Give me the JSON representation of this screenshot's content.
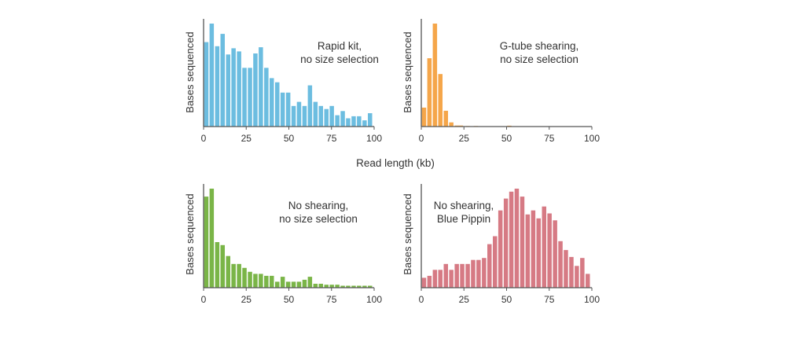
{
  "shared_xlabel": "Read length (kb)",
  "chart_data": [
    {
      "type": "bar",
      "color": "#6cbde0",
      "annotation": [
        "Rapid kit,",
        "no size selection"
      ],
      "ylabel": "Bases sequenced",
      "xlabel": "",
      "xlim": [
        0,
        100
      ],
      "xticks": [
        0,
        25,
        50,
        75,
        100
      ],
      "bin_width": 3.2,
      "x": [
        1.6,
        4.8,
        8.0,
        11.2,
        14.4,
        17.6,
        20.8,
        24.0,
        27.2,
        30.4,
        33.6,
        36.8,
        40.0,
        43.2,
        46.4,
        49.6,
        52.8,
        56.0,
        59.2,
        62.4,
        65.6,
        68.8,
        72.0,
        75.2,
        78.4,
        81.6,
        84.8,
        88.0,
        91.2,
        94.4,
        97.6
      ],
      "values": [
        82,
        100,
        78,
        90,
        70,
        76,
        73,
        57,
        57,
        71,
        77,
        57,
        47,
        43,
        33,
        33,
        20,
        24,
        20,
        40,
        24,
        20,
        17,
        20,
        11,
        15,
        8,
        10,
        10,
        6,
        13
      ]
    },
    {
      "type": "bar",
      "color": "#f5a64a",
      "annotation": [
        "G-tube shearing,",
        "no size selection"
      ],
      "ylabel": "Bases sequenced",
      "xlabel": "",
      "xlim": [
        0,
        100
      ],
      "xticks": [
        0,
        25,
        50,
        75,
        100
      ],
      "bin_width": 3.2,
      "x": [
        1.6,
        4.8,
        8.0,
        11.2,
        14.4,
        17.6,
        20.8,
        23.2,
        27.2,
        32.0,
        51.6
      ],
      "values": [
        18,
        65,
        98,
        50,
        15,
        4,
        1,
        1,
        0.5,
        0.5,
        0.8
      ]
    },
    {
      "type": "bar",
      "color": "#7ab547",
      "annotation": [
        "No shearing,",
        "no size selection"
      ],
      "ylabel": "Bases sequenced",
      "xlabel": "",
      "xlim": [
        0,
        100
      ],
      "xticks": [
        0,
        25,
        50,
        75,
        100
      ],
      "bin_width": 3.2,
      "x": [
        1.6,
        4.8,
        8.0,
        11.2,
        14.4,
        17.6,
        20.8,
        24.0,
        27.2,
        30.4,
        33.6,
        36.8,
        40.0,
        43.2,
        46.4,
        49.6,
        52.8,
        56.0,
        59.2,
        62.4,
        65.6,
        68.8,
        72.0,
        75.2,
        78.4,
        81.6,
        84.8,
        88.0,
        91.2,
        94.4,
        97.6
      ],
      "values": [
        92,
        100,
        46,
        43,
        32,
        24,
        24,
        20,
        16,
        14,
        14,
        12,
        12,
        6,
        11,
        6,
        6,
        6,
        8,
        11,
        4,
        4,
        3,
        3,
        3,
        2,
        2,
        2,
        2,
        2,
        2
      ]
    },
    {
      "type": "bar",
      "color": "#d67a84",
      "annotation": [
        "No shearing,",
        "Blue Pippin"
      ],
      "ylabel": "Bases sequenced",
      "xlabel": "",
      "xlim": [
        0,
        100
      ],
      "xticks": [
        0,
        25,
        50,
        75,
        100
      ],
      "bin_width": 3.2,
      "x": [
        1.6,
        4.8,
        8.0,
        11.2,
        14.4,
        17.6,
        20.8,
        24.0,
        27.2,
        30.4,
        33.6,
        36.8,
        40.0,
        43.2,
        46.4,
        49.6,
        52.8,
        56.0,
        59.2,
        62.4,
        65.6,
        68.8,
        72.0,
        75.2,
        78.4,
        81.6,
        84.8,
        88.0,
        91.2,
        94.4,
        97.6
      ],
      "values": [
        10,
        12,
        18,
        18,
        24,
        18,
        24,
        24,
        24,
        28,
        28,
        30,
        44,
        52,
        78,
        90,
        97,
        100,
        92,
        74,
        78,
        70,
        82,
        75,
        68,
        47,
        38,
        31,
        22,
        30,
        14
      ]
    }
  ]
}
